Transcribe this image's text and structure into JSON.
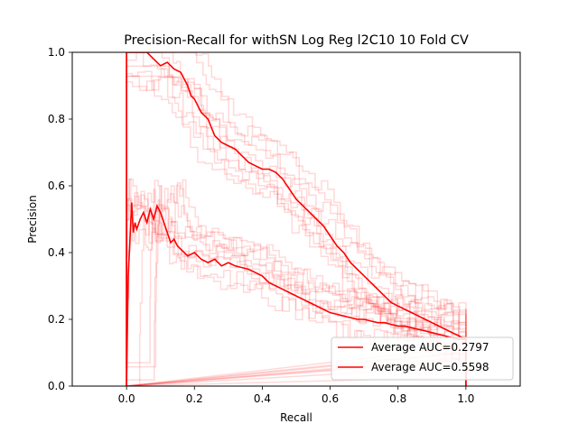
{
  "chart_data": {
    "type": "line",
    "title": "Precision-Recall for withSN Log Reg l2C10 10 Fold CV",
    "xlabel": "Recall",
    "ylabel": "Precision",
    "xlim": [
      -0.16,
      1.16
    ],
    "ylim": [
      0,
      1
    ],
    "x_ticks": [
      0.0,
      0.2,
      0.4,
      0.6,
      0.8,
      1.0
    ],
    "x_tick_labels": [
      "0.0",
      "0.2",
      "0.4",
      "0.6",
      "0.8",
      "1.0"
    ],
    "y_ticks": [
      0.0,
      0.2,
      0.4,
      0.6,
      0.8,
      1.0
    ],
    "y_tick_labels": [
      "0.0",
      "0.2",
      "0.4",
      "0.6",
      "0.8",
      "1.0"
    ],
    "grid": false,
    "legend_position": "lower-right",
    "fold_line_color": "#ff0000",
    "fold_line_opacity": 0.15,
    "series": [
      {
        "name": "Average AUC=0.2797",
        "color": "#ff0000",
        "x": [
          0.0,
          0.003,
          0.005,
          0.01,
          0.015,
          0.02,
          0.025,
          0.03,
          0.04,
          0.05,
          0.06,
          0.07,
          0.08,
          0.09,
          0.1,
          0.11,
          0.12,
          0.13,
          0.14,
          0.15,
          0.16,
          0.18,
          0.2,
          0.22,
          0.24,
          0.26,
          0.28,
          0.3,
          0.32,
          0.34,
          0.36,
          0.38,
          0.4,
          0.42,
          0.44,
          0.46,
          0.48,
          0.5,
          0.52,
          0.54,
          0.56,
          0.58,
          0.6,
          0.62,
          0.64,
          0.66,
          0.68,
          0.7,
          0.72,
          0.74,
          0.76,
          0.78,
          0.8,
          0.82,
          0.84,
          0.86,
          0.88,
          0.9,
          0.92,
          0.94,
          0.96,
          0.98,
          1.0
        ],
        "y": [
          0.0,
          0.2,
          0.33,
          0.44,
          0.55,
          0.46,
          0.49,
          0.47,
          0.5,
          0.52,
          0.49,
          0.53,
          0.5,
          0.54,
          0.52,
          0.49,
          0.46,
          0.43,
          0.44,
          0.42,
          0.41,
          0.39,
          0.4,
          0.38,
          0.37,
          0.38,
          0.36,
          0.37,
          0.36,
          0.355,
          0.35,
          0.34,
          0.33,
          0.31,
          0.3,
          0.29,
          0.28,
          0.27,
          0.26,
          0.25,
          0.24,
          0.23,
          0.22,
          0.215,
          0.21,
          0.205,
          0.2,
          0.2,
          0.195,
          0.19,
          0.19,
          0.185,
          0.18,
          0.18,
          0.175,
          0.17,
          0.165,
          0.16,
          0.155,
          0.15,
          0.145,
          0.14,
          0.14
        ]
      },
      {
        "name": "Average AUC=0.5598",
        "color": "#ff0000",
        "x": [
          0.0,
          0.0,
          0.06,
          0.08,
          0.1,
          0.12,
          0.14,
          0.16,
          0.18,
          0.19,
          0.2,
          0.22,
          0.24,
          0.26,
          0.28,
          0.3,
          0.32,
          0.34,
          0.36,
          0.38,
          0.4,
          0.42,
          0.44,
          0.46,
          0.48,
          0.5,
          0.52,
          0.54,
          0.56,
          0.58,
          0.6,
          0.62,
          0.64,
          0.66,
          0.68,
          0.7,
          0.72,
          0.74,
          0.76,
          0.78,
          0.8,
          0.82,
          0.84,
          0.86,
          0.88,
          0.9,
          0.92,
          0.94,
          0.96,
          0.98,
          1.0,
          1.0
        ],
        "y": [
          0.0,
          1.0,
          1.0,
          0.98,
          0.96,
          0.97,
          0.95,
          0.94,
          0.9,
          0.87,
          0.86,
          0.82,
          0.8,
          0.75,
          0.73,
          0.72,
          0.71,
          0.69,
          0.67,
          0.66,
          0.65,
          0.65,
          0.64,
          0.62,
          0.59,
          0.56,
          0.54,
          0.52,
          0.5,
          0.48,
          0.45,
          0.42,
          0.4,
          0.37,
          0.35,
          0.33,
          0.31,
          0.29,
          0.27,
          0.25,
          0.24,
          0.23,
          0.22,
          0.21,
          0.2,
          0.19,
          0.18,
          0.17,
          0.16,
          0.15,
          0.14,
          0.0
        ]
      }
    ]
  }
}
